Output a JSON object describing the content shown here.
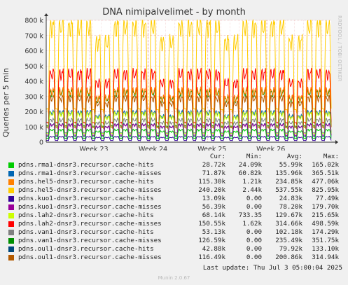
{
  "title": "DNA nimipalvelimet - by month",
  "ylabel": "Queries per 5 min",
  "watermark": "RRDTOOL / TOBI OETIKER",
  "footer": "Munin 2.0.67",
  "last_update": "Last update: Thu Jul  3 05:00:04 2025",
  "legend_headers": {
    "cur": "Cur:",
    "min": "Min:",
    "avg": "Avg:",
    "max": "Max:"
  },
  "chart_data": {
    "type": "line",
    "title": "DNA nimipalvelimet - by month",
    "ylabel": "Queries per 5 min",
    "ylim": [
      0,
      800000
    ],
    "y_ticks": [
      "0",
      "100 k",
      "200 k",
      "300 k",
      "400 k",
      "500 k",
      "600 k",
      "700 k",
      "800 k"
    ],
    "x_ticks": [
      "Week 23",
      "Week 24",
      "Week 25",
      "Week 26"
    ],
    "grid": true,
    "series": [
      {
        "name": "pdns.rma1-dnsr3.recursor.cache-hits",
        "color": "#00cc00",
        "cur": "28.72k",
        "min": "24.09k",
        "avg": "55.99k",
        "max": "165.02k"
      },
      {
        "name": "pdns.rma1-dnsr3.recursor.cache-misses",
        "color": "#0066b3",
        "cur": "71.87k",
        "min": "60.82k",
        "avg": "135.96k",
        "max": "365.51k"
      },
      {
        "name": "pdns.hel5-dnsr3.recursor.cache-hits",
        "color": "#ff8000",
        "cur": "115.30k",
        "min": "1.21k",
        "avg": "234.85k",
        "max": "477.06k"
      },
      {
        "name": "pdns.hel5-dnsr3.recursor.cache-misses",
        "color": "#ffcc00",
        "cur": "240.20k",
        "min": "2.44k",
        "avg": "537.55k",
        "max": "825.95k"
      },
      {
        "name": "pdns.kuo1-dnsr3.recursor.cache-hits",
        "color": "#330099",
        "cur": "13.09k",
        "min": "0.00",
        "avg": "24.83k",
        "max": "77.49k"
      },
      {
        "name": "pdns.kuo1-dnsr3.recursor.cache-misses",
        "color": "#990099",
        "cur": "56.39k",
        "min": "0.00",
        "avg": "78.20k",
        "max": "179.70k"
      },
      {
        "name": "pdns.lah2-dnsr3.recursor.cache-hits",
        "color": "#ccff00",
        "cur": "68.14k",
        "min": "733.35",
        "avg": "129.67k",
        "max": "215.65k"
      },
      {
        "name": "pdns.lah2-dnsr3.recursor.cache-misses",
        "color": "#ff0000",
        "cur": "150.55k",
        "min": "1.62k",
        "avg": "314.66k",
        "max": "498.59k"
      },
      {
        "name": "pdns.van1-dnsr3.recursor.cache-hits",
        "color": "#808080",
        "cur": "53.13k",
        "min": "0.00",
        "avg": "102.18k",
        "max": "174.29k"
      },
      {
        "name": "pdns.van1-dnsr3.recursor.cache-misses",
        "color": "#008f00",
        "cur": "126.59k",
        "min": "0.00",
        "avg": "235.49k",
        "max": "351.75k"
      },
      {
        "name": "pdns.oul1-dnsr3.recursor.cache-hits",
        "color": "#00487d",
        "cur": "42.88k",
        "min": "0.00",
        "avg": "79.92k",
        "max": "133.10k"
      },
      {
        "name": "pdns.oul1-dnsr3.recursor.cache-misses",
        "color": "#b35a00",
        "cur": "116.49k",
        "min": "0.00",
        "avg": "200.86k",
        "max": "314.94k"
      }
    ]
  }
}
